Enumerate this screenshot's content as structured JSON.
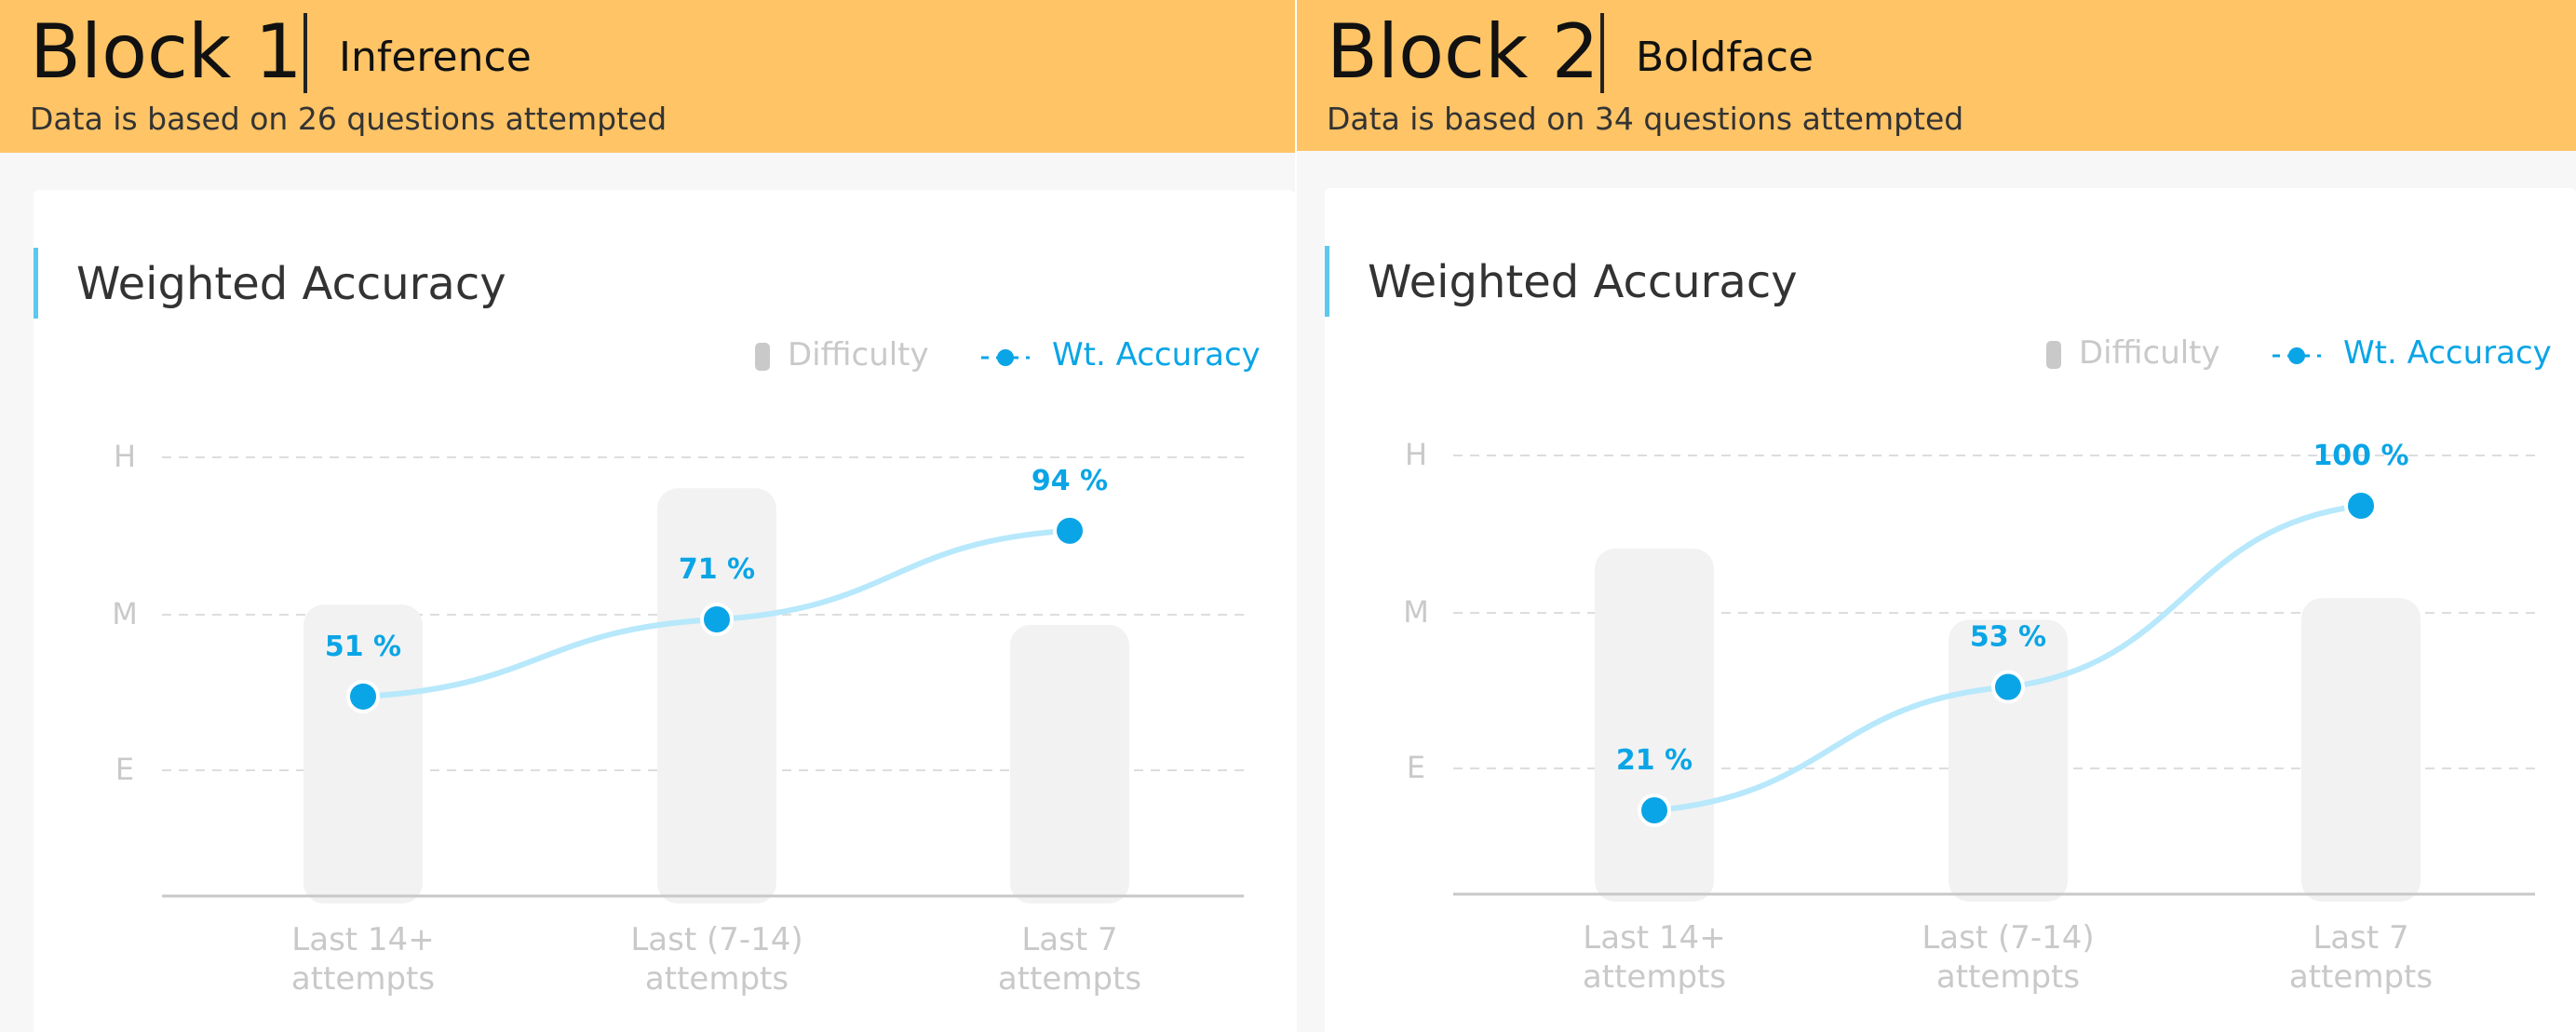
{
  "colors": {
    "header": "#fec466",
    "accent": "#5bc8f0",
    "point": "#0aa5e6",
    "line": "#b7e8fb",
    "bar": "#f2f2f2",
    "muted": "#c9c9c9",
    "label": "#0aa5e6"
  },
  "blocks": [
    {
      "name": "Block 1",
      "topic": "Inference",
      "note": "Data is based on 26 questions attempted",
      "card_title": "Weighted Accuracy"
    },
    {
      "name": "Block 2",
      "topic": "Boldface",
      "note": "Data is based on 34 questions attempted",
      "card_title": "Weighted Accuracy"
    }
  ],
  "chart_data": [
    {
      "type": "bar",
      "title": "Weighted Accuracy",
      "legend": {
        "placement": "top-right",
        "items": [
          "Difficulty",
          "Wt. Accuracy"
        ]
      },
      "y_ticks": [
        "H",
        "M",
        "E"
      ],
      "grid": true,
      "categories": [
        [
          "Last 14+",
          "attempts"
        ],
        [
          "Last (7-14)",
          "attempts"
        ],
        [
          "Last 7",
          "attempts"
        ]
      ],
      "series": [
        {
          "name": "Difficulty",
          "type": "bar",
          "values": [
            2.05,
            2.8,
            1.92
          ]
        },
        {
          "name": "Wt. Accuracy",
          "type": "line",
          "values": [
            51,
            71,
            94
          ],
          "labels": [
            "51 %",
            "71 %",
            "94 %"
          ]
        }
      ]
    },
    {
      "type": "bar",
      "title": "Weighted Accuracy",
      "legend": {
        "placement": "top-right",
        "items": [
          "Difficulty",
          "Wt. Accuracy"
        ]
      },
      "y_ticks": [
        "H",
        "M",
        "E"
      ],
      "grid": true,
      "categories": [
        [
          "Last 14+",
          "attempts"
        ],
        [
          "Last (7-14)",
          "attempts"
        ],
        [
          "Last 7",
          "attempts"
        ]
      ],
      "series": [
        {
          "name": "Difficulty",
          "type": "bar",
          "values": [
            2.4,
            1.94,
            2.08
          ]
        },
        {
          "name": "Wt. Accuracy",
          "type": "line",
          "values": [
            21,
            53,
            100
          ],
          "labels": [
            "21 %",
            "53 %",
            "100 %"
          ]
        }
      ]
    }
  ]
}
